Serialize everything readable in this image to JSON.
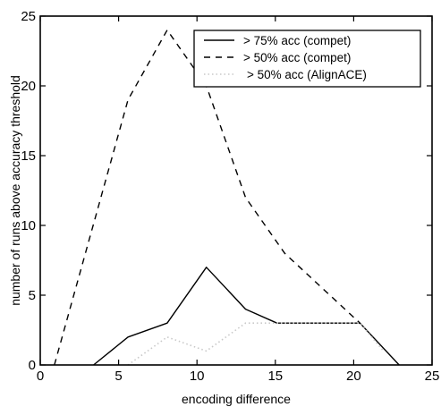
{
  "chart_data": {
    "type": "line",
    "title": "",
    "xlabel": "encoding difference",
    "ylabel": "number of runs above accuracy threshold",
    "xlim": [
      0,
      25
    ],
    "ylim": [
      0,
      25
    ],
    "xticks": [
      0,
      5,
      10,
      15,
      20,
      25
    ],
    "yticks": [
      0,
      5,
      10,
      15,
      20,
      25
    ],
    "grid": false,
    "legend_position": "top-right",
    "series": [
      {
        "name": "> 75% acc (compet)",
        "style": "solid",
        "color": "#000000",
        "x": [
          3.4,
          5.6,
          8.1,
          10.6,
          13.1,
          15.1,
          20.4,
          22.9
        ],
        "y": [
          0,
          2,
          3,
          7,
          4,
          3,
          3,
          0
        ]
      },
      {
        "name": "> 50% acc (compet)",
        "style": "dashed",
        "color": "#000000",
        "x": [
          0.9,
          5.6,
          8.1,
          10.6,
          13.1,
          15.6,
          20.4
        ],
        "y": [
          0,
          19,
          24,
          20,
          12,
          8,
          3
        ]
      },
      {
        "name": "> 50% acc (AlignACE)",
        "style": "dotted",
        "color": "#c8c8c8",
        "x": [
          5.6,
          8.1,
          10.6,
          13.1,
          15.6,
          20.4,
          21.9
        ],
        "y": [
          0,
          2,
          1,
          3,
          3,
          3,
          1
        ]
      }
    ]
  }
}
